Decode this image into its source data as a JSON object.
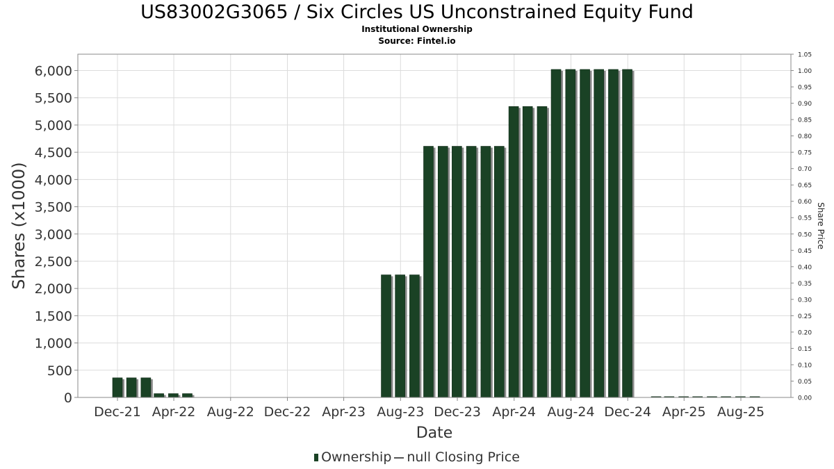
{
  "chart_data": {
    "type": "bar",
    "title": "US83002G3065 / Six Circles US Unconstrained Equity Fund",
    "subtitle": "Institutional Ownership",
    "source": "Source: Fintel.io",
    "xlabel": "Date",
    "ylabel": "Shares (x1000)",
    "y2label": "Share Price",
    "ylim": [
      0,
      6300
    ],
    "y2lim": [
      0,
      1.05
    ],
    "x_ticks": [
      "Dec-21",
      "Apr-22",
      "Aug-22",
      "Dec-22",
      "Apr-23",
      "Aug-23",
      "Dec-23",
      "Apr-24",
      "Aug-24",
      "Dec-24",
      "Apr-25",
      "Aug-25"
    ],
    "y_ticks": [
      "0",
      "500",
      "1,000",
      "1,500",
      "2,000",
      "2,500",
      "3,000",
      "3,500",
      "4,000",
      "4,500",
      "5,000",
      "5,500",
      "6,000"
    ],
    "y2_ticks": [
      "0.00",
      "0.05",
      "0.10",
      "0.15",
      "0.20",
      "0.25",
      "0.30",
      "0.35",
      "0.40",
      "0.45",
      "0.50",
      "0.55",
      "0.60",
      "0.65",
      "0.70",
      "0.75",
      "0.80",
      "0.85",
      "0.90",
      "0.95",
      "1.00",
      "1.05"
    ],
    "grid": true,
    "legend_position": "bottom",
    "series": [
      {
        "name": "Ownership",
        "color": "#1a4225",
        "dates": [
          "2021-12-01",
          "2021-12-31",
          "2022-01-31",
          "2022-02-28",
          "2022-03-31",
          "2022-04-30",
          "2023-07-01",
          "2023-07-31",
          "2023-08-31",
          "2023-09-30",
          "2023-10-31",
          "2023-11-30",
          "2023-12-31",
          "2024-01-31",
          "2024-02-29",
          "2024-03-31",
          "2024-04-30",
          "2024-05-31",
          "2024-06-30",
          "2024-07-31",
          "2024-08-31",
          "2024-09-30",
          "2024-10-31",
          "2024-11-30",
          "2025-01-31",
          "2025-02-28",
          "2025-03-31",
          "2025-04-30",
          "2025-05-31",
          "2025-06-30",
          "2025-07-31",
          "2025-08-31"
        ],
        "values": [
          360,
          360,
          360,
          70,
          70,
          70,
          2250,
          2250,
          2250,
          4610,
          4610,
          4610,
          4610,
          4610,
          4610,
          5340,
          5340,
          5340,
          6020,
          6020,
          6020,
          6020,
          6020,
          6020,
          15,
          15,
          15,
          15,
          15,
          15,
          15,
          15
        ]
      }
    ],
    "legend": [
      {
        "label": "Ownership",
        "symbol": "bar",
        "color": "#1a4225"
      },
      {
        "label": "null Closing Price",
        "symbol": "line",
        "color": "#555555"
      }
    ]
  }
}
